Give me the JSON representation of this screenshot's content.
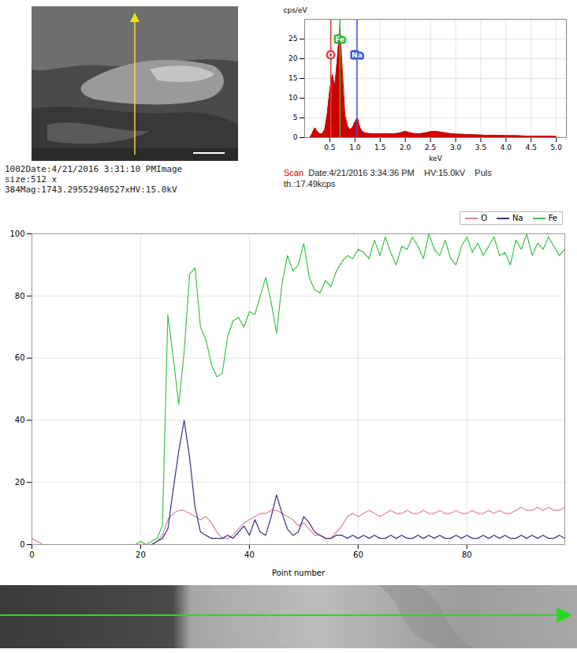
{
  "sem_image": {
    "caption_lines": [
      "1002Date:4/21/2016 3:31:10 PMImage",
      "size:512 x",
      "384Mag:1743.29552940527xHV:15.0kV"
    ]
  },
  "spectrum_caption": [
    "Scan",
    "Date:4/21/2016 3:34:36 PM",
    "HV:15.0kV",
    "Puls",
    "th.:17.49kcps"
  ],
  "chart_data": [
    {
      "type": "area",
      "x_label": "keV",
      "y_label": "cps/eV",
      "color": "#cc0000",
      "grid": true,
      "x": [
        0.1,
        0.15,
        0.2,
        0.25,
        0.3,
        0.35,
        0.4,
        0.45,
        0.5,
        0.55,
        0.6,
        0.65,
        0.7,
        0.75,
        0.8,
        0.85,
        0.9,
        0.95,
        1.0,
        1.05,
        1.1,
        1.15,
        1.2,
        1.3,
        1.4,
        1.5,
        1.6,
        1.7,
        1.8,
        1.9,
        2.0,
        2.1,
        2.2,
        2.3,
        2.4,
        2.5,
        2.6,
        2.7,
        2.8,
        2.9,
        3.0,
        3.2,
        3.4,
        3.6,
        3.8,
        4.0,
        4.2,
        4.4,
        4.6,
        4.8,
        5.0
      ],
      "values": [
        0,
        1,
        2.5,
        1.5,
        1,
        1,
        2,
        6,
        12,
        16,
        13,
        20,
        28,
        17,
        6,
        3,
        2,
        2.5,
        4,
        5,
        2.5,
        1.5,
        1.2,
        1,
        1,
        1,
        1,
        1,
        1,
        1.2,
        1.6,
        1.2,
        1,
        1,
        1.2,
        1.5,
        1.6,
        1.4,
        1.2,
        1,
        0.9,
        0.8,
        0.7,
        0.6,
        0.6,
        0.5,
        0.5,
        0.4,
        0.4,
        0.4,
        0.3
      ],
      "xlim": [
        0,
        5.2
      ],
      "xticks": [
        0.5,
        {
          "value": 1,
          "label": "1.0"
        },
        1.5,
        {
          "value": 2,
          "label": "2.0"
        },
        2.5,
        {
          "value": 3,
          "label": "3.0"
        },
        3.5,
        {
          "value": 4,
          "label": "4.0"
        },
        4.5,
        {
          "value": 5,
          "label": "5.0"
        }
      ],
      "ylim": [
        0,
        30
      ],
      "yticks": [
        0,
        5,
        10,
        15,
        20,
        25
      ],
      "peaks": [
        {
          "label": "O",
          "x": 0.52,
          "color": "#e04040"
        },
        {
          "label": "Fe",
          "x": 0.7,
          "color": "#2fb52f"
        },
        {
          "label": "Na",
          "x": 1.04,
          "color": "#3355dd"
        }
      ]
    },
    {
      "type": "line",
      "x_label": "Point number",
      "grid": true,
      "legend": "top-right",
      "x": [
        0,
        1,
        2,
        3,
        4,
        5,
        6,
        7,
        8,
        9,
        10,
        11,
        12,
        13,
        14,
        15,
        16,
        17,
        18,
        19,
        20,
        21,
        22,
        23,
        24,
        25,
        26,
        27,
        28,
        29,
        30,
        31,
        32,
        33,
        34,
        35,
        36,
        37,
        38,
        39,
        40,
        41,
        42,
        43,
        44,
        45,
        46,
        47,
        48,
        49,
        50,
        51,
        52,
        53,
        54,
        55,
        56,
        57,
        58,
        59,
        60,
        61,
        62,
        63,
        64,
        65,
        66,
        67,
        68,
        69,
        70,
        71,
        72,
        73,
        74,
        75,
        76,
        77,
        78,
        79,
        80,
        81,
        82,
        83,
        84,
        85,
        86,
        87,
        88,
        89,
        90,
        91,
        92,
        93,
        94,
        95,
        96,
        97,
        98
      ],
      "xlim": [
        0,
        98
      ],
      "xticks": [
        0,
        20,
        40,
        60,
        80
      ],
      "ylim": [
        0,
        100
      ],
      "yticks": [
        0,
        20,
        40,
        60,
        80,
        100
      ],
      "series": [
        {
          "name": "O",
          "color": "#d9849a",
          "values": [
            2,
            1,
            0,
            0,
            0,
            0,
            0,
            0,
            0,
            0,
            0,
            0,
            0,
            0,
            0,
            0,
            0,
            0,
            0,
            0,
            0,
            0,
            0,
            1,
            3,
            8,
            10,
            11,
            11,
            10,
            9,
            8,
            9,
            7,
            4,
            2,
            2,
            3,
            5,
            7,
            8,
            9,
            10,
            10,
            11,
            11,
            10,
            9,
            8,
            6,
            7,
            5,
            3,
            3,
            2,
            2,
            4,
            6,
            9,
            10,
            9,
            10,
            11,
            10,
            9,
            10,
            11,
            10,
            10,
            11,
            10,
            10,
            11,
            10,
            10,
            11,
            10,
            10,
            11,
            10,
            10,
            11,
            10,
            10,
            11,
            10,
            11,
            10,
            10,
            11,
            12,
            11,
            11,
            12,
            11,
            12,
            11,
            11,
            12
          ]
        },
        {
          "name": "Na",
          "color": "#3b2f8f",
          "values": [
            0,
            0,
            0,
            0,
            0,
            0,
            0,
            0,
            0,
            0,
            0,
            0,
            0,
            0,
            0,
            0,
            0,
            0,
            0,
            0,
            0,
            0,
            0,
            1,
            2,
            5,
            18,
            30,
            40,
            28,
            12,
            4,
            3,
            2,
            2,
            2,
            3,
            2,
            4,
            6,
            3,
            8,
            4,
            3,
            9,
            16,
            10,
            5,
            3,
            4,
            9,
            7,
            4,
            3,
            2,
            2,
            3,
            3,
            2,
            3,
            2,
            3,
            2,
            3,
            2,
            2,
            3,
            2,
            3,
            2,
            2,
            3,
            2,
            3,
            2,
            3,
            2,
            2,
            3,
            2,
            3,
            2,
            2,
            3,
            2,
            3,
            2,
            3,
            2,
            2,
            3,
            2,
            3,
            2,
            3,
            2,
            2,
            3,
            2
          ]
        },
        {
          "name": "Fe",
          "color": "#3cc24a",
          "values": [
            0,
            0,
            0,
            0,
            0,
            0,
            0,
            0,
            0,
            0,
            0,
            0,
            0,
            0,
            0,
            0,
            0,
            0,
            0,
            0,
            1,
            0,
            1,
            2,
            6,
            74,
            60,
            45,
            62,
            87,
            89,
            70,
            66,
            58,
            54,
            55,
            67,
            72,
            73,
            70,
            75,
            74,
            80,
            86,
            78,
            68,
            84,
            93,
            88,
            90,
            97,
            86,
            82,
            81,
            85,
            83,
            88,
            91,
            93,
            92,
            95,
            94,
            92,
            98,
            93,
            99,
            94,
            90,
            96,
            95,
            99,
            96,
            92,
            100,
            95,
            93,
            98,
            92,
            90,
            96,
            99,
            94,
            97,
            93,
            96,
            99,
            93,
            94,
            90,
            98,
            95,
            100,
            93,
            97,
            95,
            99,
            96,
            93,
            95
          ]
        }
      ]
    }
  ]
}
